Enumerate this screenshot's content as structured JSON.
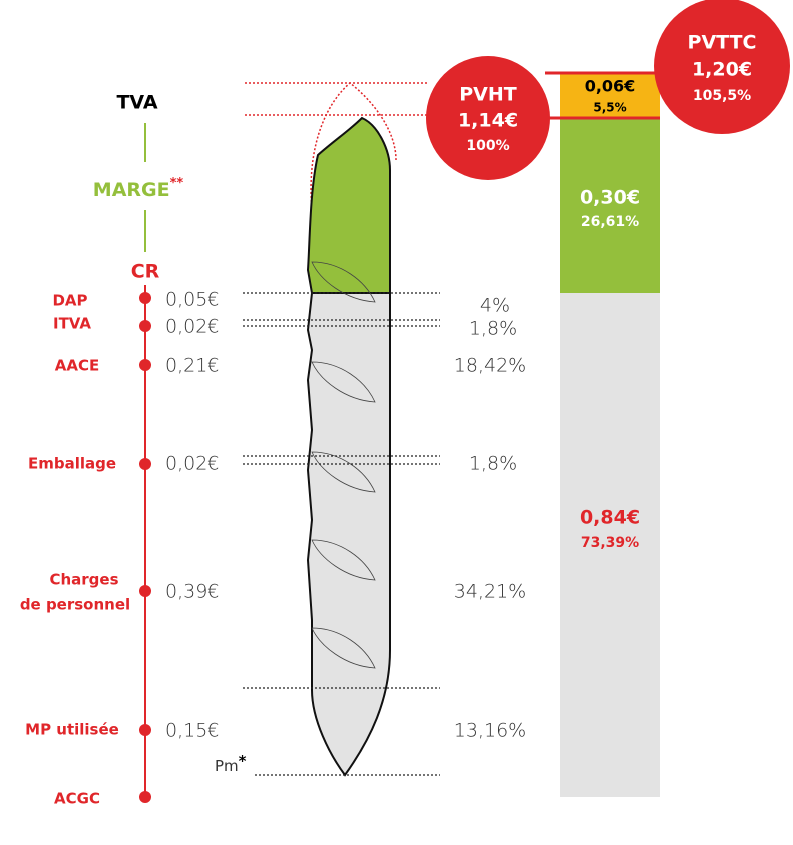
{
  "header": {
    "tva": "TVA",
    "marge": "MARGE",
    "marge_note": "**",
    "cr": "CR"
  },
  "costs": [
    {
      "label": "DAP",
      "amount": "0,05€",
      "percent": "4%"
    },
    {
      "label": "ITVA",
      "amount": "0,02€",
      "percent": "1,8%"
    },
    {
      "label": "AACE",
      "amount": "0,21€",
      "percent": "18,42%"
    },
    {
      "label": "Emballage",
      "amount": "0,02€",
      "percent": "1,8%"
    },
    {
      "label": [
        "Charges",
        "de personnel"
      ],
      "amount": "0,39€",
      "percent": "34,21%"
    },
    {
      "label": "MP utilisée",
      "amount": "0,15€",
      "percent": "13,16%"
    },
    {
      "label": "ACGC"
    }
  ],
  "pm": {
    "label": "Pm",
    "note": "*"
  },
  "pvht": {
    "title": "PVHT",
    "amount": "1,14€",
    "percent": "100%"
  },
  "pvttc": {
    "title": "PVTTC",
    "amount": "1,20€",
    "percent": "105,5%"
  },
  "bar": {
    "tva": {
      "amount": "0,06€",
      "percent": "5,5%"
    },
    "marge": {
      "amount": "0,30€",
      "percent": "26,61%"
    },
    "cr": {
      "amount": "0,84€",
      "percent": "73,39%"
    }
  }
}
